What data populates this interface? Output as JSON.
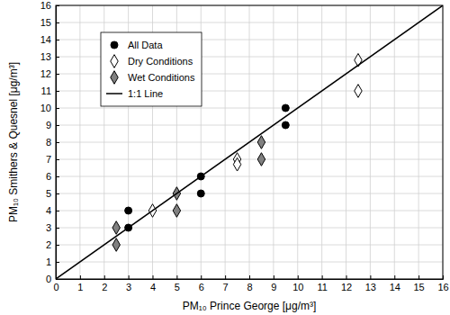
{
  "chart_data": {
    "type": "scatter",
    "x_label": "PM₁₀ Prince George [μg/m³]",
    "y_label": "PM₁₀ Smithers & Quesnel [μg/m³]",
    "xlim": [
      0,
      16
    ],
    "ylim": [
      0,
      16
    ],
    "xticks": [
      0,
      1,
      2,
      3,
      4,
      5,
      6,
      7,
      8,
      9,
      10,
      11,
      12,
      13,
      14,
      15,
      16
    ],
    "yticks": [
      0,
      1,
      2,
      3,
      4,
      5,
      6,
      7,
      8,
      9,
      10,
      11,
      12,
      13,
      14,
      15,
      16
    ],
    "grid": true,
    "legend": "upper left",
    "series": [
      {
        "name": "All Data",
        "color": "#000000",
        "marker": "circle",
        "x": [
          3,
          3,
          6,
          6,
          9.5,
          9.5
        ],
        "values": [
          4,
          3,
          6,
          5,
          10,
          9
        ]
      },
      {
        "name": "Dry Conditions",
        "color": "#ffffff",
        "marker": "diamond",
        "x": [
          4,
          7.5,
          7.5,
          12.5,
          12.5
        ],
        "values": [
          4,
          7,
          6.7,
          12.8,
          11
        ]
      },
      {
        "name": "Wet Conditions",
        "color": "#808080",
        "marker": "diamond",
        "x": [
          2.5,
          2.5,
          5,
          5,
          8.5,
          8.5
        ],
        "values": [
          3,
          2,
          5,
          4,
          8,
          7
        ]
      },
      {
        "name": "1:1 Line",
        "type": "line",
        "color": "#000000",
        "line_style": "solid",
        "x": [
          0,
          16
        ],
        "values": [
          0,
          16
        ]
      }
    ]
  }
}
